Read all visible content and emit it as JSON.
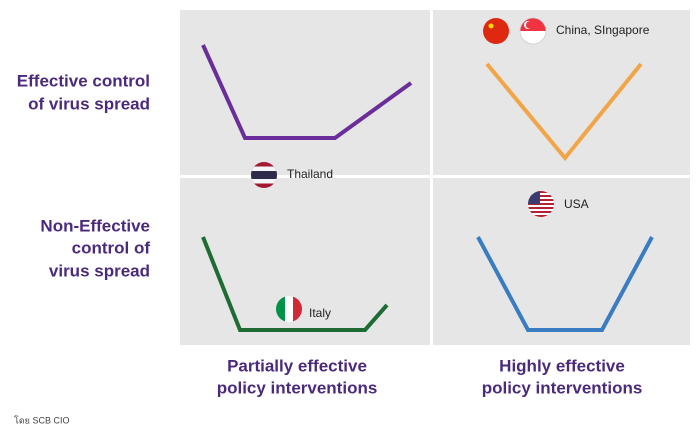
{
  "rows": [
    {
      "label": [
        "Effective control",
        "of virus spread"
      ]
    },
    {
      "label": [
        "Non-Effective",
        "control of",
        "virus spread"
      ]
    }
  ],
  "columns": [
    {
      "label": [
        "Partially effective",
        "policy interventions"
      ]
    },
    {
      "label": [
        "Highly effective",
        "policy interventions"
      ]
    }
  ],
  "countries": [
    "China, SIngapore",
    "Thailand",
    "USA",
    "Italy"
  ],
  "source": "โดย SCB CIO"
}
